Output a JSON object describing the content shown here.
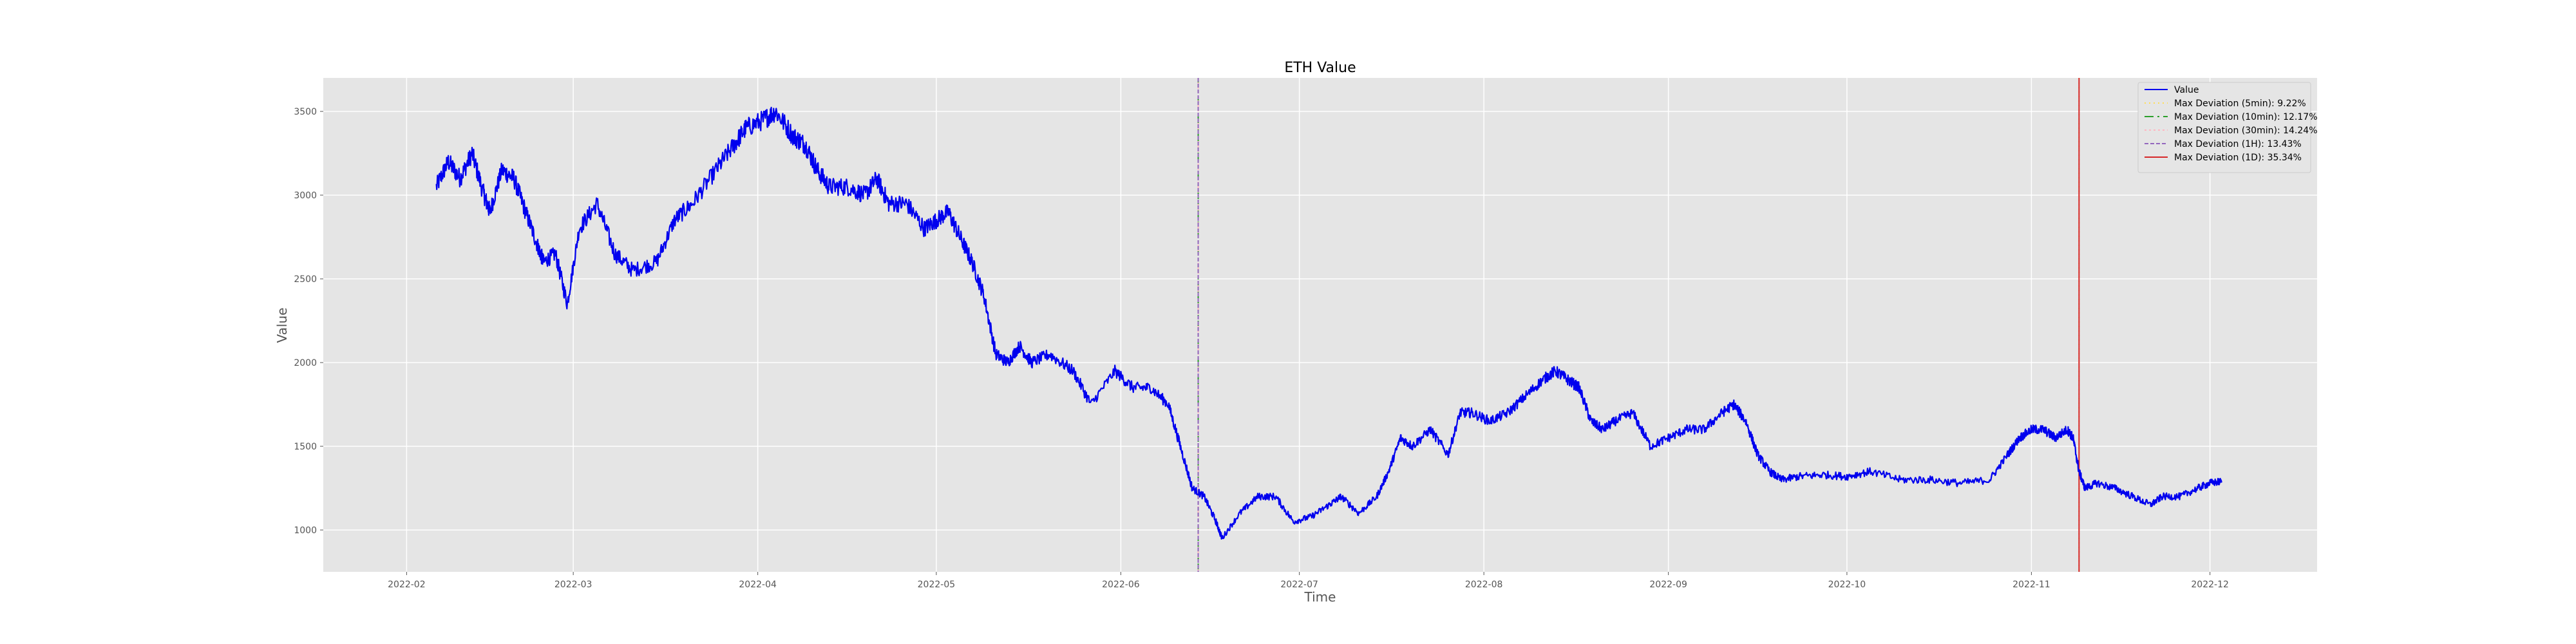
{
  "chart_data": {
    "type": "line",
    "title": "ETH Value",
    "xlabel": "Time",
    "ylabel": "Value",
    "x_domain": [
      "2022-01-18",
      "2022-12-19"
    ],
    "ylim": [
      750,
      3700
    ],
    "x_ticks": [
      "2022-02-01",
      "2022-03-01",
      "2022-04-01",
      "2022-05-01",
      "2022-06-01",
      "2022-07-01",
      "2022-08-01",
      "2022-09-01",
      "2022-10-01",
      "2022-11-01",
      "2022-12-01"
    ],
    "x_tick_labels": [
      "2022-02",
      "2022-03",
      "2022-04",
      "2022-05",
      "2022-06",
      "2022-07",
      "2022-08",
      "2022-09",
      "2022-10",
      "2022-11",
      "2022-12"
    ],
    "y_ticks": [
      1000,
      1500,
      2000,
      2500,
      3000,
      3500
    ],
    "y_tick_labels": [
      "1000",
      "1500",
      "2000",
      "2500",
      "3000",
      "3500"
    ],
    "grid": true,
    "background": "#e5e5e5",
    "legend_position": "top-right",
    "series": [
      {
        "name": "Value",
        "color": "#0000ee",
        "x": [
          "2022-02-06",
          "2022-02-08",
          "2022-02-10",
          "2022-02-12",
          "2022-02-14",
          "2022-02-15",
          "2022-02-17",
          "2022-02-19",
          "2022-02-21",
          "2022-02-23",
          "2022-02-24",
          "2022-02-26",
          "2022-02-28",
          "2022-03-02",
          "2022-03-05",
          "2022-03-08",
          "2022-03-11",
          "2022-03-15",
          "2022-03-18",
          "2022-03-21",
          "2022-03-25",
          "2022-03-28",
          "2022-03-30",
          "2022-04-02",
          "2022-04-04",
          "2022-04-07",
          "2022-04-09",
          "2022-04-11",
          "2022-04-13",
          "2022-04-16",
          "2022-04-19",
          "2022-04-21",
          "2022-04-23",
          "2022-04-26",
          "2022-04-29",
          "2022-05-01",
          "2022-05-03",
          "2022-05-05",
          "2022-05-07",
          "2022-05-09",
          "2022-05-11",
          "2022-05-13",
          "2022-05-15",
          "2022-05-17",
          "2022-05-20",
          "2022-05-24",
          "2022-05-27",
          "2022-05-31",
          "2022-06-03",
          "2022-06-06",
          "2022-06-09",
          "2022-06-11",
          "2022-06-13",
          "2022-06-15",
          "2022-06-17",
          "2022-06-18",
          "2022-06-21",
          "2022-06-24",
          "2022-06-27",
          "2022-06-30",
          "2022-07-03",
          "2022-07-06",
          "2022-07-08",
          "2022-07-11",
          "2022-07-14",
          "2022-07-16",
          "2022-07-18",
          "2022-07-20",
          "2022-07-23",
          "2022-07-26",
          "2022-07-28",
          "2022-07-30",
          "2022-08-02",
          "2022-08-05",
          "2022-08-08",
          "2022-08-11",
          "2022-08-13",
          "2022-08-15",
          "2022-08-17",
          "2022-08-19",
          "2022-08-21",
          "2022-08-23",
          "2022-08-26",
          "2022-08-29",
          "2022-09-01",
          "2022-09-04",
          "2022-09-07",
          "2022-09-10",
          "2022-09-12",
          "2022-09-14",
          "2022-09-16",
          "2022-09-18",
          "2022-09-20",
          "2022-09-23",
          "2022-09-27",
          "2022-10-01",
          "2022-10-05",
          "2022-10-10",
          "2022-10-15",
          "2022-10-20",
          "2022-10-25",
          "2022-10-28",
          "2022-10-30",
          "2022-11-01",
          "2022-11-03",
          "2022-11-05",
          "2022-11-07",
          "2022-11-08",
          "2022-11-09",
          "2022-11-10",
          "2022-11-12",
          "2022-11-15",
          "2022-11-18",
          "2022-11-21",
          "2022-11-23",
          "2022-11-26",
          "2022-11-29",
          "2022-12-01",
          "2022-12-03"
        ],
        "values": [
          3050,
          3200,
          3100,
          3250,
          3000,
          2900,
          3150,
          3100,
          2900,
          2700,
          2600,
          2650,
          2350,
          2800,
          2950,
          2650,
          2550,
          2600,
          2850,
          2950,
          3150,
          3300,
          3400,
          3450,
          3500,
          3350,
          3300,
          3150,
          3050,
          3050,
          3000,
          3100,
          2950,
          2950,
          2800,
          2850,
          2900,
          2750,
          2600,
          2400,
          2050,
          2000,
          2100,
          2000,
          2050,
          1950,
          1750,
          1950,
          1850,
          1850,
          1750,
          1500,
          1250,
          1200,
          1050,
          950,
          1100,
          1200,
          1200,
          1050,
          1080,
          1150,
          1200,
          1100,
          1200,
          1350,
          1550,
          1500,
          1600,
          1450,
          1700,
          1700,
          1650,
          1700,
          1800,
          1900,
          1950,
          1900,
          1850,
          1650,
          1600,
          1650,
          1700,
          1500,
          1550,
          1600,
          1600,
          1700,
          1750,
          1650,
          1450,
          1350,
          1300,
          1320,
          1330,
          1320,
          1350,
          1300,
          1300,
          1280,
          1300,
          1450,
          1550,
          1600,
          1600,
          1550,
          1600,
          1550,
          1350,
          1250,
          1280,
          1250,
          1200,
          1150,
          1200,
          1200,
          1250,
          1280,
          1290
        ]
      }
    ],
    "deviation_markers": [
      {
        "name": "Max Deviation (5min): 9.22%",
        "x": "2022-11-09",
        "color": "#ffdd55",
        "dash": "2,5"
      },
      {
        "name": "Max Deviation (10min): 12.17%",
        "x": "2022-06-14",
        "color": "#2ca02c",
        "dash": "14,6,3,6"
      },
      {
        "name": "Max Deviation (30min): 14.24%",
        "x": "2022-06-14",
        "color": "#ffb6c1",
        "dash": "3,4"
      },
      {
        "name": "Max Deviation (1H): 13.43%",
        "x": "2022-06-14",
        "color": "#9467bd",
        "dash": "6,3"
      },
      {
        "name": "Max Deviation (1D): 35.34%",
        "x": "2022-11-09",
        "color": "#d62728",
        "dash": ""
      }
    ]
  }
}
